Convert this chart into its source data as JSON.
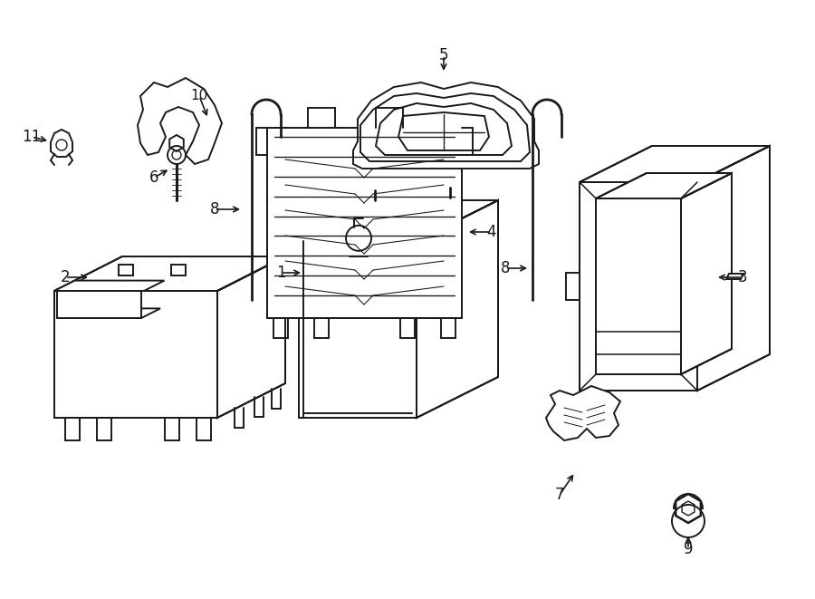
{
  "background_color": "#ffffff",
  "line_color": "#1a1a1a",
  "line_width": 1.4,
  "fig_width": 9.0,
  "fig_height": 6.61,
  "dpi": 100
}
